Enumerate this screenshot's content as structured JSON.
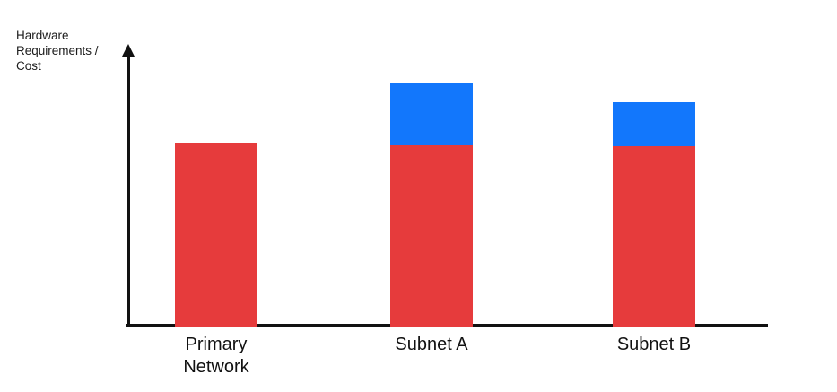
{
  "chart": {
    "y_axis_label": "Hardware\nRequirements /\nCost",
    "axis_color": "#111111",
    "background": "#FFFFFF",
    "text_color": "#111111"
  },
  "chart_data": {
    "type": "bar",
    "stacked": true,
    "title": "",
    "xlabel": "",
    "ylabel": "Hardware Requirements / Cost",
    "categories": [
      "Primary Network",
      "Subnet A",
      "Subnet B"
    ],
    "series": [
      {
        "name": "red",
        "color": "#E63B3C",
        "values": [
          205,
          202,
          201
        ]
      },
      {
        "name": "blue",
        "color": "#1277FC",
        "values": [
          0,
          70,
          49
        ]
      }
    ],
    "units": "relative height (px), no numeric scale shown",
    "ylim": [
      0,
      312
    ],
    "grid": false,
    "legend": "none"
  }
}
